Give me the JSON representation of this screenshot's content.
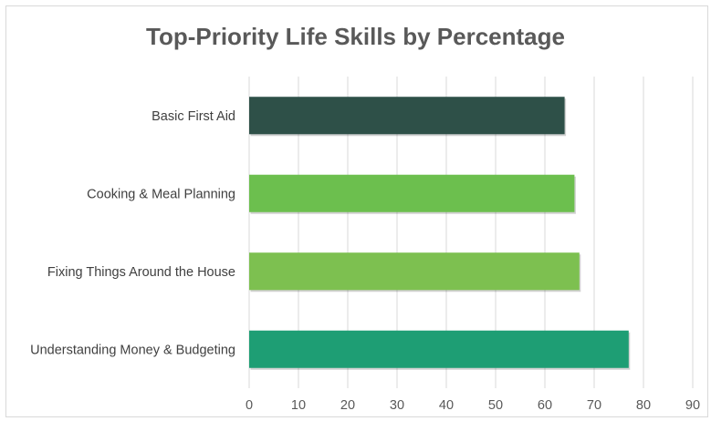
{
  "chart_data": {
    "type": "bar",
    "orientation": "horizontal",
    "title": "Top-Priority Life Skills by Percentage",
    "xlabel": "",
    "ylabel": "",
    "categories": [
      "Basic First Aid",
      "Cooking & Meal Planning",
      "Fixing Things Around the House",
      "Understanding Money & Budgeting"
    ],
    "values": [
      64,
      66,
      67,
      77
    ],
    "bar_colors": [
      "#2e5048",
      "#6cbf4e",
      "#7dc050",
      "#1e9e74"
    ],
    "xlim": [
      0,
      90
    ],
    "xticks": [
      0,
      10,
      20,
      30,
      40,
      50,
      60,
      70,
      80,
      90
    ],
    "grid": "vertical",
    "legend": "none"
  }
}
